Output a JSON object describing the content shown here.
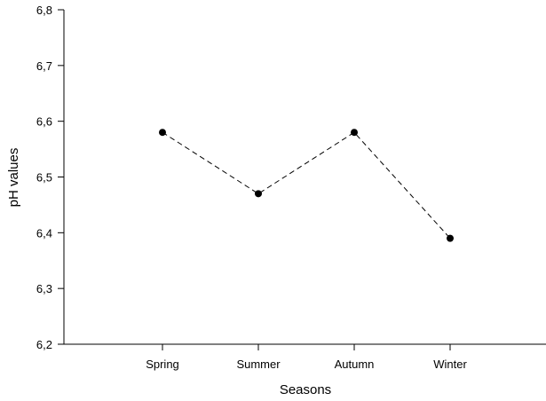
{
  "chart_data": {
    "type": "line",
    "xlabel": "Seasons",
    "ylabel": "pH values",
    "categories": [
      "Spring",
      "Summer",
      "Autumn",
      "Winter"
    ],
    "series": [
      {
        "values": [
          6.58,
          6.47,
          6.58,
          6.39
        ]
      }
    ],
    "ylim": [
      6.2,
      6.8
    ],
    "yticks": [
      "6,2",
      "6,3",
      "6,4",
      "6,5",
      "6,6",
      "6,7",
      "6,8"
    ],
    "line_style": "dashed",
    "marker": "filled-circle",
    "grid": false,
    "line_color": "#000000"
  }
}
